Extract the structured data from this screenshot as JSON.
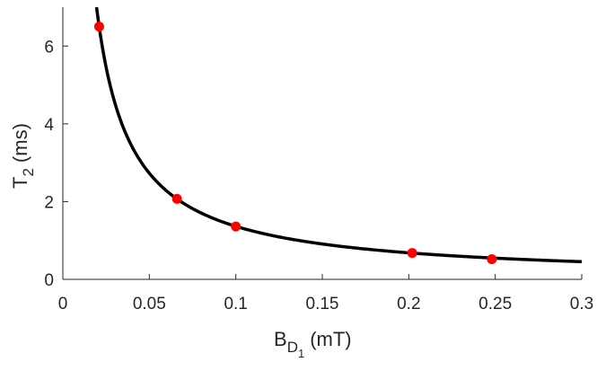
{
  "chart_data": {
    "type": "scatter",
    "xlabel": "B_D1 (mT)",
    "ylabel": "T_2 (ms)",
    "xlabel_parts": {
      "base": "B",
      "sub": "D",
      "subsub": "1",
      "unit": "(mT)"
    },
    "ylabel_parts": {
      "base": "T",
      "sub": "2",
      "unit": "(ms)"
    },
    "xlim": [
      0,
      0.3
    ],
    "ylim": [
      0,
      7
    ],
    "x_ticks": [
      0,
      0.05,
      0.1,
      0.15,
      0.2,
      0.25,
      0.3
    ],
    "x_tick_labels": [
      "0",
      "0.05",
      "0.1",
      "0.15",
      "0.2",
      "0.25",
      "0.3"
    ],
    "y_ticks": [
      0,
      2,
      4,
      6
    ],
    "y_tick_labels": [
      "0",
      "2",
      "4",
      "6"
    ],
    "grid": false,
    "series": [
      {
        "kind": "line",
        "color": "#000000",
        "model": "y = k / x",
        "k": 0.1365,
        "x_range": [
          0.0195,
          0.3
        ]
      },
      {
        "kind": "scatter",
        "color": "#ff0000",
        "x": [
          0.021,
          0.066,
          0.1,
          0.202,
          0.248
        ],
        "y": [
          6.5,
          2.07,
          1.36,
          0.68,
          0.52
        ]
      }
    ]
  }
}
